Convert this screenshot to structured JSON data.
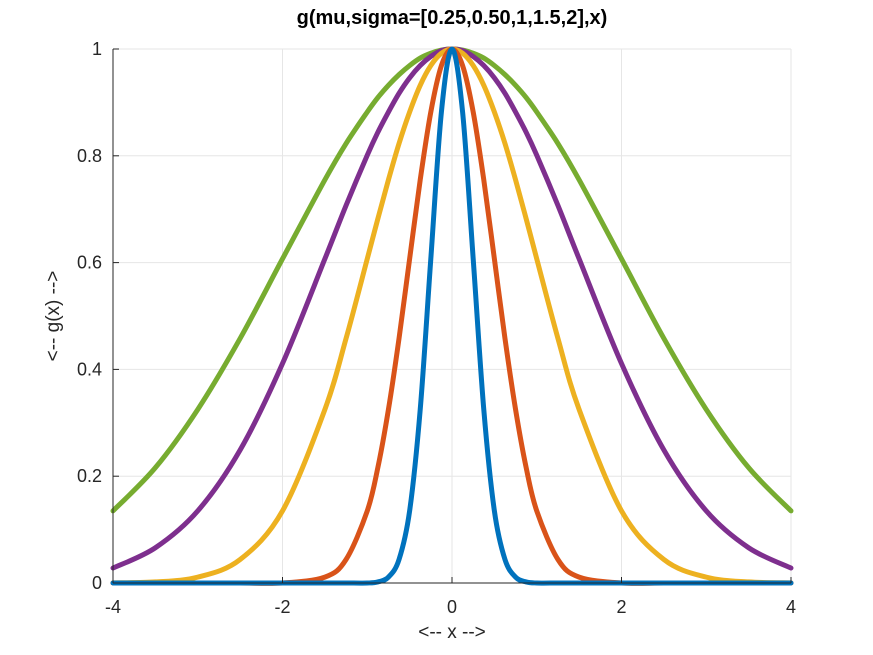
{
  "chart_data": {
    "type": "line",
    "title": "g(mu,sigma=[0.25,0.50,1,1.5,2],x)",
    "xlabel": "<-- x -->",
    "ylabel": "<-- g(x) -->",
    "xlim": [
      -4,
      4
    ],
    "ylim": [
      0,
      1
    ],
    "xticks": [
      -4,
      -2,
      0,
      2,
      4
    ],
    "xtick_labels": [
      "-4",
      "-2",
      "0",
      "2",
      "4"
    ],
    "yticks": [
      0,
      0.2,
      0.4,
      0.6,
      0.8,
      1
    ],
    "ytick_labels": [
      "0",
      "0.2",
      "0.4",
      "0.6",
      "0.8",
      "1"
    ],
    "grid": true,
    "x": [
      -4,
      -3.5,
      -3,
      -2.5,
      -2,
      -1.5,
      -1.25,
      -1,
      -0.875,
      -0.75,
      -0.625,
      -0.5,
      -0.375,
      -0.25,
      -0.125,
      0,
      0.125,
      0.25,
      0.375,
      0.5,
      0.625,
      0.75,
      0.875,
      1,
      1.25,
      1.5,
      2,
      2.5,
      3,
      3.5,
      4
    ],
    "series": [
      {
        "color": "#0072BD",
        "values": [
          0,
          0,
          0,
          0,
          0,
          0,
          0,
          0,
          0.002,
          0.011,
          0.044,
          0.135,
          0.325,
          0.607,
          0.882,
          1,
          0.882,
          0.607,
          0.325,
          0.135,
          0.044,
          0.011,
          0.002,
          0,
          0,
          0,
          0,
          0,
          0,
          0,
          0
        ]
      },
      {
        "color": "#D95319",
        "values": [
          0,
          0,
          0,
          0,
          0,
          0.011,
          0.044,
          0.135,
          0.216,
          0.325,
          0.458,
          0.607,
          0.755,
          0.882,
          0.969,
          1,
          0.969,
          0.882,
          0.755,
          0.607,
          0.458,
          0.325,
          0.216,
          0.135,
          0.044,
          0.011,
          0,
          0,
          0,
          0,
          0
        ]
      },
      {
        "color": "#EDB120",
        "values": [
          0.0003,
          0.002,
          0.011,
          0.044,
          0.135,
          0.325,
          0.458,
          0.607,
          0.682,
          0.755,
          0.823,
          0.882,
          0.932,
          0.969,
          0.992,
          1,
          0.992,
          0.969,
          0.932,
          0.882,
          0.823,
          0.755,
          0.682,
          0.607,
          0.458,
          0.325,
          0.135,
          0.044,
          0.011,
          0.002,
          0.0003
        ]
      },
      {
        "color": "#7E2F8E",
        "values": [
          0.028,
          0.066,
          0.135,
          0.249,
          0.411,
          0.607,
          0.707,
          0.801,
          0.844,
          0.882,
          0.917,
          0.946,
          0.969,
          0.986,
          0.997,
          1,
          0.997,
          0.986,
          0.969,
          0.946,
          0.917,
          0.882,
          0.844,
          0.801,
          0.707,
          0.607,
          0.411,
          0.249,
          0.135,
          0.066,
          0.028
        ]
      },
      {
        "color": "#77AC30",
        "values": [
          0.135,
          0.216,
          0.325,
          0.458,
          0.607,
          0.755,
          0.823,
          0.882,
          0.909,
          0.932,
          0.952,
          0.969,
          0.983,
          0.992,
          0.998,
          1,
          0.998,
          0.992,
          0.983,
          0.969,
          0.952,
          0.932,
          0.909,
          0.882,
          0.823,
          0.755,
          0.607,
          0.458,
          0.325,
          0.216,
          0.135
        ]
      }
    ]
  }
}
